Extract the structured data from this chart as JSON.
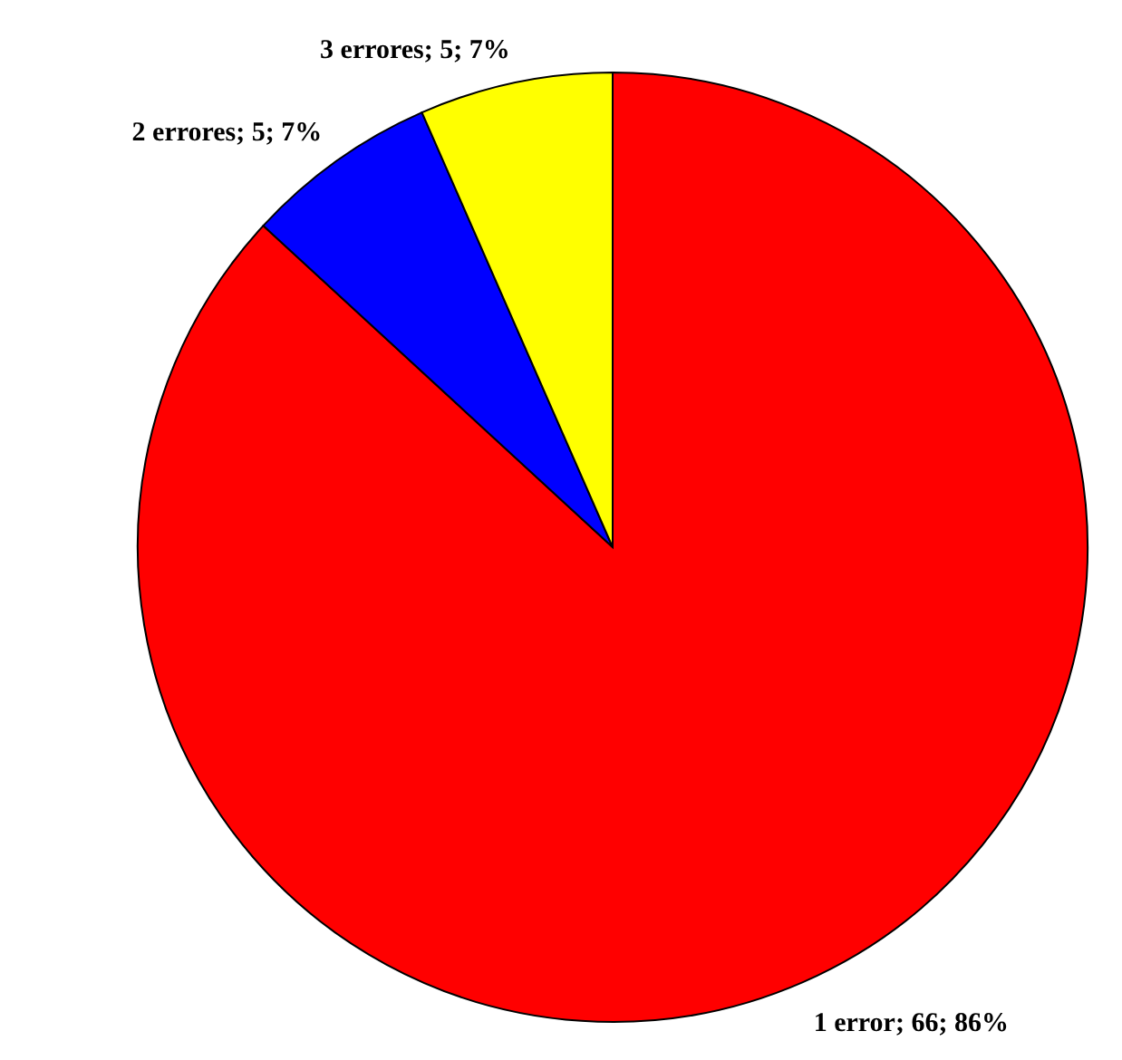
{
  "chart_data": {
    "type": "pie",
    "categories": [
      "1 error",
      "2 errores",
      "3 errores"
    ],
    "values": [
      66,
      5,
      5
    ],
    "value_labels": [
      "66; 86%",
      "5; 7%",
      "5; 7%"
    ],
    "colors": [
      "#ff0000",
      "#0000ff",
      "#ffff00"
    ]
  }
}
